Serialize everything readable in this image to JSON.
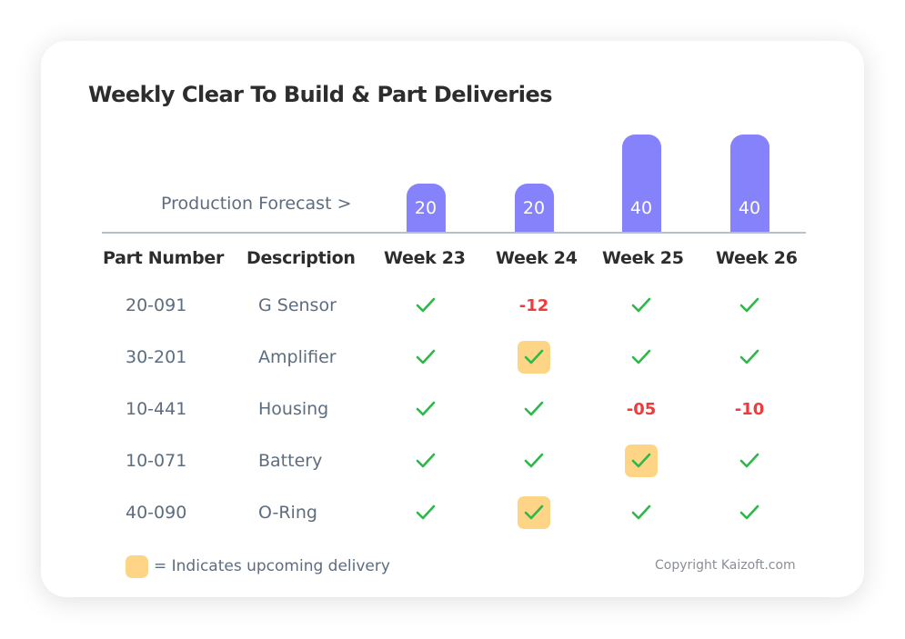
{
  "title": "Weekly Clear To Build & Part Deliveries",
  "forecast_label": "Production Forecast >",
  "colors": {
    "bar": "#8582fc",
    "highlight": "#fed587",
    "check": "#2db84a",
    "shortage": "#ef3b3b"
  },
  "columns": [
    "Part Number",
    "Description",
    "Week 23",
    "Week 24",
    "Week 25",
    "Week 26"
  ],
  "chart_data": {
    "type": "bar",
    "categories": [
      "Week 23",
      "Week 24",
      "Week 25",
      "Week 26"
    ],
    "values": [
      20,
      20,
      40,
      40
    ]
  },
  "rows": [
    {
      "part": "20-091",
      "desc": "G Sensor",
      "cells": [
        {
          "v": "check"
        },
        {
          "v": "-12"
        },
        {
          "v": "check"
        },
        {
          "v": "check"
        }
      ]
    },
    {
      "part": "30-201",
      "desc": "Amplifier",
      "cells": [
        {
          "v": "check"
        },
        {
          "v": "check",
          "upcoming": true
        },
        {
          "v": "check"
        },
        {
          "v": "check"
        }
      ]
    },
    {
      "part": "10-441",
      "desc": "Housing",
      "cells": [
        {
          "v": "check"
        },
        {
          "v": "check"
        },
        {
          "v": "-05"
        },
        {
          "v": "-10"
        }
      ]
    },
    {
      "part": "10-071",
      "desc": "Battery",
      "cells": [
        {
          "v": "check"
        },
        {
          "v": "check"
        },
        {
          "v": "check",
          "upcoming": true
        },
        {
          "v": "check"
        }
      ]
    },
    {
      "part": "40-090",
      "desc": "O-Ring",
      "cells": [
        {
          "v": "check"
        },
        {
          "v": "check",
          "upcoming": true
        },
        {
          "v": "check"
        },
        {
          "v": "check"
        }
      ]
    }
  ],
  "legend": "= Indicates upcoming delivery",
  "copyright": "Copyright Kaizoft.com"
}
